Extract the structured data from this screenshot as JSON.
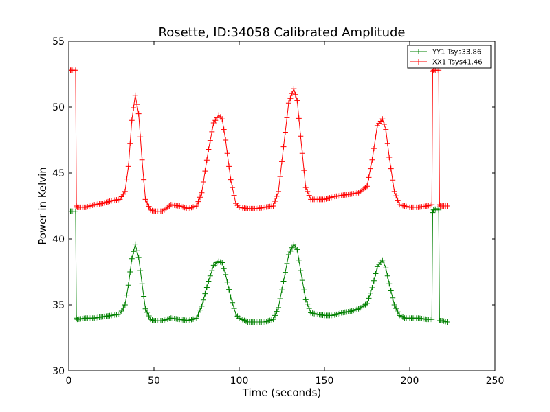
{
  "chart_data": {
    "type": "line",
    "title": "Rosette, ID:34058 Calibrated Amplitude",
    "xlabel": "Time (seconds)",
    "ylabel": "Power in Kelvin",
    "xlim": [
      0,
      250
    ],
    "ylim": [
      30,
      55
    ],
    "xticks": [
      0,
      50,
      100,
      150,
      200,
      250
    ],
    "yticks": [
      30,
      35,
      40,
      45,
      50,
      55
    ],
    "grid": false,
    "legend_position": "top-right",
    "marker": "+",
    "series": [
      {
        "name": "YY1 Tsys33.86",
        "color": "#008000",
        "x": [
          0,
          2,
          4,
          4.5,
          5,
          10,
          15,
          20,
          25,
          30,
          33,
          35,
          37,
          39,
          41,
          43,
          45,
          48,
          50,
          55,
          60,
          65,
          70,
          75,
          78,
          82,
          85,
          88,
          90,
          92,
          95,
          98,
          100,
          105,
          110,
          115,
          120,
          123,
          126,
          129,
          132,
          134,
          136,
          139,
          142,
          145,
          150,
          155,
          160,
          165,
          170,
          175,
          178,
          181,
          184,
          186,
          188,
          191,
          194,
          197,
          200,
          205,
          210,
          213,
          213.5,
          214,
          216,
          217,
          217.5,
          218,
          219,
          222
        ],
        "y": [
          42.1,
          42.1,
          42.1,
          34.0,
          33.9,
          34.0,
          34.0,
          34.1,
          34.2,
          34.3,
          35.0,
          36.5,
          38.5,
          39.6,
          38.6,
          36.6,
          34.7,
          33.9,
          33.8,
          33.8,
          34.0,
          33.9,
          33.8,
          34.0,
          34.9,
          36.8,
          38.0,
          38.3,
          38.2,
          37.3,
          35.6,
          34.3,
          34.0,
          33.7,
          33.7,
          33.7,
          33.9,
          34.8,
          36.8,
          38.8,
          39.6,
          39.2,
          37.6,
          35.4,
          34.4,
          34.3,
          34.2,
          34.2,
          34.4,
          34.5,
          34.7,
          35.1,
          36.3,
          37.9,
          38.4,
          37.8,
          36.6,
          35.0,
          34.2,
          34.0,
          34.0,
          34.0,
          33.9,
          33.9,
          42.0,
          42.2,
          42.3,
          42.2,
          33.8,
          33.8,
          33.8,
          33.7
        ]
      },
      {
        "name": "XX1 Tsys41.46",
        "color": "#ff0000",
        "x": [
          0,
          2,
          4,
          4.5,
          5,
          10,
          15,
          20,
          25,
          30,
          33,
          35,
          37,
          39,
          41,
          43,
          45,
          48,
          50,
          55,
          60,
          65,
          70,
          75,
          78,
          82,
          85,
          88,
          90,
          92,
          95,
          98,
          100,
          105,
          110,
          115,
          120,
          123,
          126,
          129,
          132,
          134,
          136,
          139,
          142,
          145,
          150,
          155,
          160,
          165,
          170,
          175,
          178,
          181,
          184,
          186,
          188,
          191,
          194,
          197,
          200,
          205,
          210,
          213,
          213.5,
          214,
          216,
          217,
          217.5,
          218,
          219,
          222
        ],
        "y": [
          52.8,
          52.8,
          52.8,
          42.5,
          42.4,
          42.4,
          42.6,
          42.7,
          42.9,
          43.0,
          43.6,
          45.5,
          49.0,
          50.9,
          49.5,
          46.0,
          43.0,
          42.2,
          42.1,
          42.1,
          42.6,
          42.5,
          42.3,
          42.5,
          43.5,
          46.8,
          48.8,
          49.4,
          49.1,
          47.5,
          44.5,
          42.7,
          42.4,
          42.3,
          42.3,
          42.4,
          42.5,
          43.6,
          47.0,
          50.3,
          51.4,
          50.5,
          47.8,
          43.9,
          43.0,
          43.0,
          43.0,
          43.2,
          43.3,
          43.4,
          43.5,
          44.0,
          46.0,
          48.6,
          49.1,
          48.3,
          46.2,
          43.6,
          42.6,
          42.5,
          42.4,
          42.4,
          42.5,
          42.6,
          52.7,
          52.8,
          52.8,
          52.8,
          42.6,
          42.5,
          42.5,
          42.5
        ]
      }
    ]
  }
}
